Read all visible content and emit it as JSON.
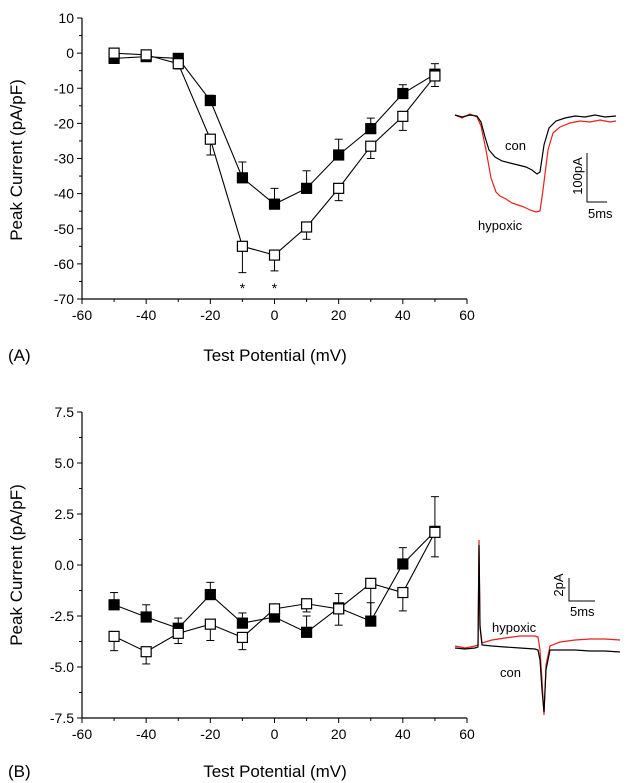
{
  "chart_data": [
    {
      "type": "line",
      "panel_label": "(A)",
      "xlabel": "Test Potential (mV)",
      "ylabel": "Peak Current (pA/pF)",
      "xlim": [
        -60,
        60
      ],
      "ylim": [
        -70,
        10
      ],
      "xticks": [
        "-60",
        "-40",
        "-20",
        "0",
        "20",
        "40",
        "60"
      ],
      "yticks": [
        "10",
        "0",
        "-10",
        "-20",
        "-30",
        "-40",
        "-50",
        "-60",
        "-70"
      ],
      "grid": false,
      "x": [
        -50,
        -40,
        -30,
        -20,
        -10,
        0,
        10,
        20,
        30,
        40,
        50
      ],
      "series": [
        {
          "marker": "filled-square",
          "color": "#000000",
          "values": [
            -1.5,
            -1.0,
            -1.5,
            -13.5,
            -35.5,
            -43,
            -38.5,
            -29,
            -21.5,
            -11.5,
            -6
          ],
          "errors": [
            0.8,
            0.8,
            0.8,
            1.5,
            4.5,
            4.5,
            5,
            4.5,
            3,
            2.5,
            3
          ]
        },
        {
          "marker": "open-square",
          "color": "#000000",
          "values": [
            0,
            -0.5,
            -3,
            -24.5,
            -55,
            -57.5,
            -49.5,
            -38.5,
            -26.5,
            -18,
            -6.5
          ],
          "errors": [
            0.8,
            0.8,
            1.5,
            4.5,
            7.5,
            4.5,
            3.5,
            3.5,
            3.5,
            4,
            3
          ]
        }
      ],
      "significance_markers": [
        {
          "x": -10,
          "text": "*"
        },
        {
          "x": 0,
          "text": "*"
        }
      ],
      "inset": {
        "trace_labels": {
          "top": "con",
          "bottom": "hypoxic"
        },
        "trace_colors": {
          "con": "#000000",
          "hypoxic": "#e8201c"
        },
        "scale_bar": {
          "vertical": "100pA",
          "horizontal": "5ms"
        }
      }
    },
    {
      "type": "line",
      "panel_label": "(B)",
      "xlabel": "Test Potential (mV)",
      "ylabel": "Peak Current (pA/pF)",
      "xlim": [
        -60,
        60
      ],
      "ylim": [
        -7.5,
        7.5
      ],
      "xticks": [
        "-60",
        "-40",
        "-20",
        "0",
        "20",
        "40",
        "60"
      ],
      "yticks": [
        "7.5",
        "5.0",
        "2.5",
        "0.0",
        "-2.5",
        "-5.0",
        "-7.5"
      ],
      "grid": false,
      "x": [
        -50,
        -40,
        -30,
        -20,
        -10,
        0,
        10,
        20,
        30,
        40,
        50
      ],
      "series": [
        {
          "marker": "filled-square",
          "color": "#000000",
          "values": [
            -1.95,
            -2.55,
            -3.1,
            -1.45,
            -2.85,
            -2.55,
            -3.3,
            -2.1,
            -2.75,
            0.05,
            1.65
          ],
          "errors": [
            0.6,
            0.6,
            0.5,
            0.6,
            0.5,
            0.5,
            0.8,
            0.7,
            0.9,
            0.8,
            1.7
          ]
        },
        {
          "marker": "open-square",
          "color": "#000000",
          "values": [
            -3.5,
            -4.25,
            -3.35,
            -2.9,
            -3.55,
            -2.15,
            -1.9,
            -2.15,
            -0.9,
            -1.35,
            1.6
          ],
          "errors": [
            0.7,
            0.6,
            0.5,
            0.8,
            0.6,
            0.5,
            0.4,
            0.8,
            1.65,
            0.9,
            1.2
          ]
        }
      ],
      "inset": {
        "trace_labels": {
          "top": "hypoxic",
          "bottom": "con"
        },
        "trace_colors": {
          "con": "#000000",
          "hypoxic": "#e8201c"
        },
        "scale_bar": {
          "vertical": "2pA",
          "horizontal": "5ms"
        }
      }
    }
  ]
}
